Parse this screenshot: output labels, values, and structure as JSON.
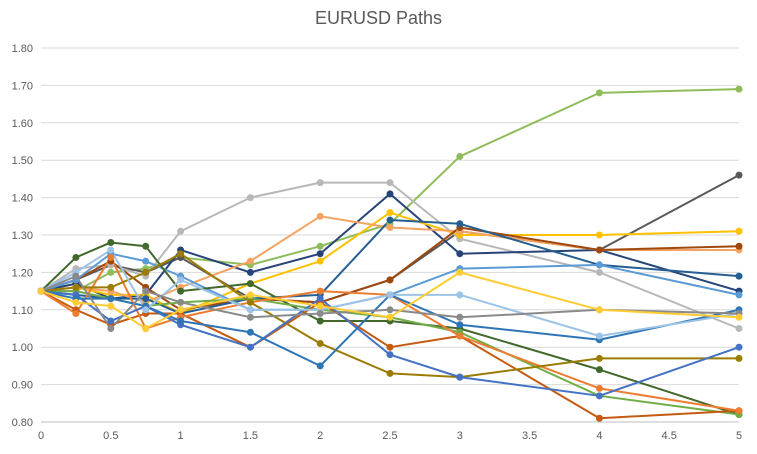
{
  "chart_data": {
    "type": "line",
    "title": "EURUSD Paths",
    "xlabel": "",
    "ylabel": "",
    "xlim": [
      0,
      5
    ],
    "ylim": [
      0.8,
      1.8
    ],
    "x_ticks": [
      "0",
      "0.5",
      "1",
      "1.5",
      "2",
      "2.5",
      "3",
      "3.5",
      "4",
      "4.5",
      "5"
    ],
    "y_ticks": [
      "0.80",
      "0.90",
      "1.00",
      "1.10",
      "1.20",
      "1.30",
      "1.40",
      "1.50",
      "1.60",
      "1.70",
      "1.80"
    ],
    "grid": true,
    "legend": "none",
    "x": [
      0,
      0.25,
      0.5,
      0.75,
      1,
      1.5,
      2,
      2.5,
      3,
      4,
      5
    ],
    "series": [
      {
        "color": "#8fbc5a",
        "values": [
          1.15,
          1.15,
          1.2,
          1.21,
          1.24,
          1.22,
          1.27,
          1.33,
          1.51,
          1.68,
          1.69
        ]
      },
      {
        "color": "#595959",
        "values": [
          1.15,
          1.18,
          1.22,
          1.2,
          1.24,
          1.13,
          1.12,
          1.18,
          1.31,
          1.26,
          1.46
        ]
      },
      {
        "color": "#b8b8b8",
        "values": [
          1.15,
          1.21,
          1.22,
          1.19,
          1.31,
          1.4,
          1.44,
          1.44,
          1.29,
          1.2,
          1.05
        ]
      },
      {
        "color": "#264478",
        "values": [
          1.15,
          1.17,
          1.13,
          1.14,
          1.26,
          1.2,
          1.25,
          1.41,
          1.25,
          1.26,
          1.15
        ]
      },
      {
        "color": "#ffc000",
        "values": [
          1.15,
          1.16,
          1.14,
          1.14,
          1.09,
          1.17,
          1.23,
          1.36,
          1.3,
          1.3,
          1.31
        ]
      },
      {
        "color": "#f4a460",
        "values": [
          1.15,
          1.16,
          1.15,
          1.12,
          1.16,
          1.23,
          1.35,
          1.32,
          1.31,
          1.26,
          1.26
        ]
      },
      {
        "color": "#9e480e",
        "values": [
          1.15,
          1.18,
          1.23,
          1.16,
          1.1,
          1.13,
          1.12,
          1.18,
          1.32,
          1.26,
          1.27
        ]
      },
      {
        "color": "#255e91",
        "values": [
          1.15,
          1.14,
          1.13,
          1.13,
          1.09,
          1.13,
          1.14,
          1.34,
          1.33,
          1.22,
          1.19
        ]
      },
      {
        "color": "#5b9bd5",
        "values": [
          1.15,
          1.18,
          1.25,
          1.23,
          1.19,
          1.1,
          1.1,
          1.14,
          1.21,
          1.22,
          1.14
        ]
      },
      {
        "color": "#43682b",
        "values": [
          1.15,
          1.24,
          1.28,
          1.27,
          1.15,
          1.17,
          1.07,
          1.07,
          1.05,
          0.94,
          0.82
        ]
      },
      {
        "color": "#70ad47",
        "values": [
          1.15,
          1.15,
          1.13,
          1.11,
          1.12,
          1.13,
          1.1,
          1.08,
          1.04,
          0.87,
          0.82
        ]
      },
      {
        "color": "#c55a11",
        "values": [
          1.15,
          1.1,
          1.06,
          1.09,
          1.09,
          1.0,
          1.12,
          1.0,
          1.03,
          0.81,
          0.83
        ]
      },
      {
        "color": "#ed7d31",
        "values": [
          1.15,
          1.09,
          1.24,
          1.05,
          1.08,
          1.12,
          1.15,
          1.14,
          1.03,
          0.89,
          0.83
        ]
      },
      {
        "color": "#9c7c00",
        "values": [
          1.15,
          1.16,
          1.16,
          1.2,
          1.25,
          1.12,
          1.01,
          0.93,
          0.92,
          0.97,
          0.97
        ]
      },
      {
        "color": "#4472c4",
        "values": [
          1.15,
          1.14,
          1.07,
          1.11,
          1.06,
          1.0,
          1.13,
          0.98,
          0.92,
          0.87,
          1.0
        ]
      },
      {
        "color": "#2e75b6",
        "values": [
          1.15,
          1.13,
          1.13,
          1.11,
          1.07,
          1.04,
          0.95,
          1.14,
          1.06,
          1.02,
          1.1
        ]
      },
      {
        "color": "#9dc3e6",
        "values": [
          1.15,
          1.2,
          1.26,
          1.1,
          1.18,
          1.1,
          1.1,
          1.14,
          1.14,
          1.03,
          1.09
        ]
      },
      {
        "color": "#8a8a8a",
        "values": [
          1.15,
          1.19,
          1.05,
          1.15,
          1.12,
          1.08,
          1.09,
          1.1,
          1.08,
          1.1,
          1.09
        ]
      },
      {
        "color": "#ffcc33",
        "values": [
          1.15,
          1.12,
          1.11,
          1.05,
          1.1,
          1.14,
          1.11,
          1.08,
          1.2,
          1.1,
          1.08
        ]
      }
    ]
  }
}
